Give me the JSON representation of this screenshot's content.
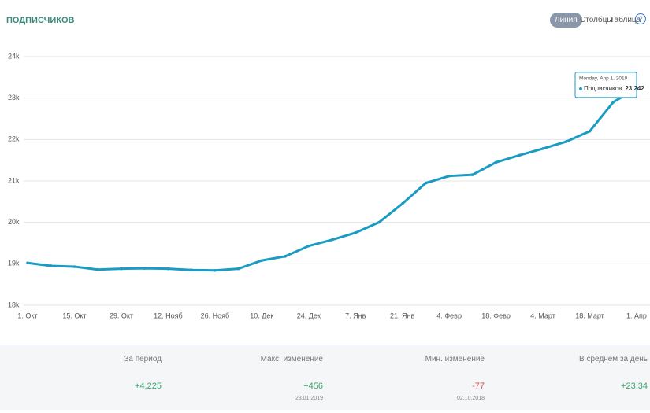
{
  "header": {
    "title": "ПОДПИСЧИКОВ",
    "tabs": [
      "Линия",
      "Столбцы",
      "Таблица"
    ],
    "help": "?"
  },
  "chart_data": {
    "type": "line",
    "categories": [
      "1. Окт",
      null,
      "15. Окт",
      null,
      "29. Окт",
      null,
      "12. Нояб",
      null,
      "26. Нояб",
      null,
      "10. Дек",
      null,
      "24. Дек",
      null,
      "7. Янв",
      null,
      "21. Янв",
      null,
      "4. Февр",
      null,
      "18. Февр",
      null,
      "4. Март",
      null,
      "18. Март",
      null,
      "1. Апр"
    ],
    "series": [
      {
        "name": "Подписчиков",
        "color": "#1a9bc4",
        "values": [
          19020,
          18950,
          18930,
          18860,
          18880,
          18890,
          18880,
          18850,
          18840,
          18880,
          19080,
          19180,
          19430,
          19580,
          19750,
          20000,
          20450,
          20950,
          21120,
          21150,
          21450,
          21620,
          21780,
          21950,
          22200,
          22900,
          23242
        ],
        "value_labels": [
          null,
          null,
          null,
          null,
          null,
          null,
          null,
          null,
          null,
          null,
          null,
          null,
          null,
          null,
          null,
          null,
          null,
          null,
          null,
          null,
          null,
          null,
          null,
          null,
          null,
          null,
          "23 242"
        ]
      }
    ],
    "ylim": [
      18000,
      24000
    ],
    "yticks": [
      {
        "value": 18000,
        "label": "18k"
      },
      {
        "value": 19000,
        "label": "19k"
      },
      {
        "value": 20000,
        "label": "20k"
      },
      {
        "value": 21000,
        "label": "21k"
      },
      {
        "value": 22000,
        "label": "22k"
      },
      {
        "value": 23000,
        "label": "23k"
      },
      {
        "value": 24000,
        "label": "24k"
      }
    ],
    "grid": true,
    "tooltip": {
      "date": "Monday, Апр 1, 2019"
    }
  },
  "stats": {
    "headers": [
      "За период",
      "Макс. изменение",
      "Мин. изменение",
      "В среднем за день"
    ],
    "values": [
      "+4,225",
      "+456",
      "-77",
      "+23.34"
    ],
    "dates": [
      null,
      "23.01.2019",
      "02.10.2018",
      null
    ]
  }
}
